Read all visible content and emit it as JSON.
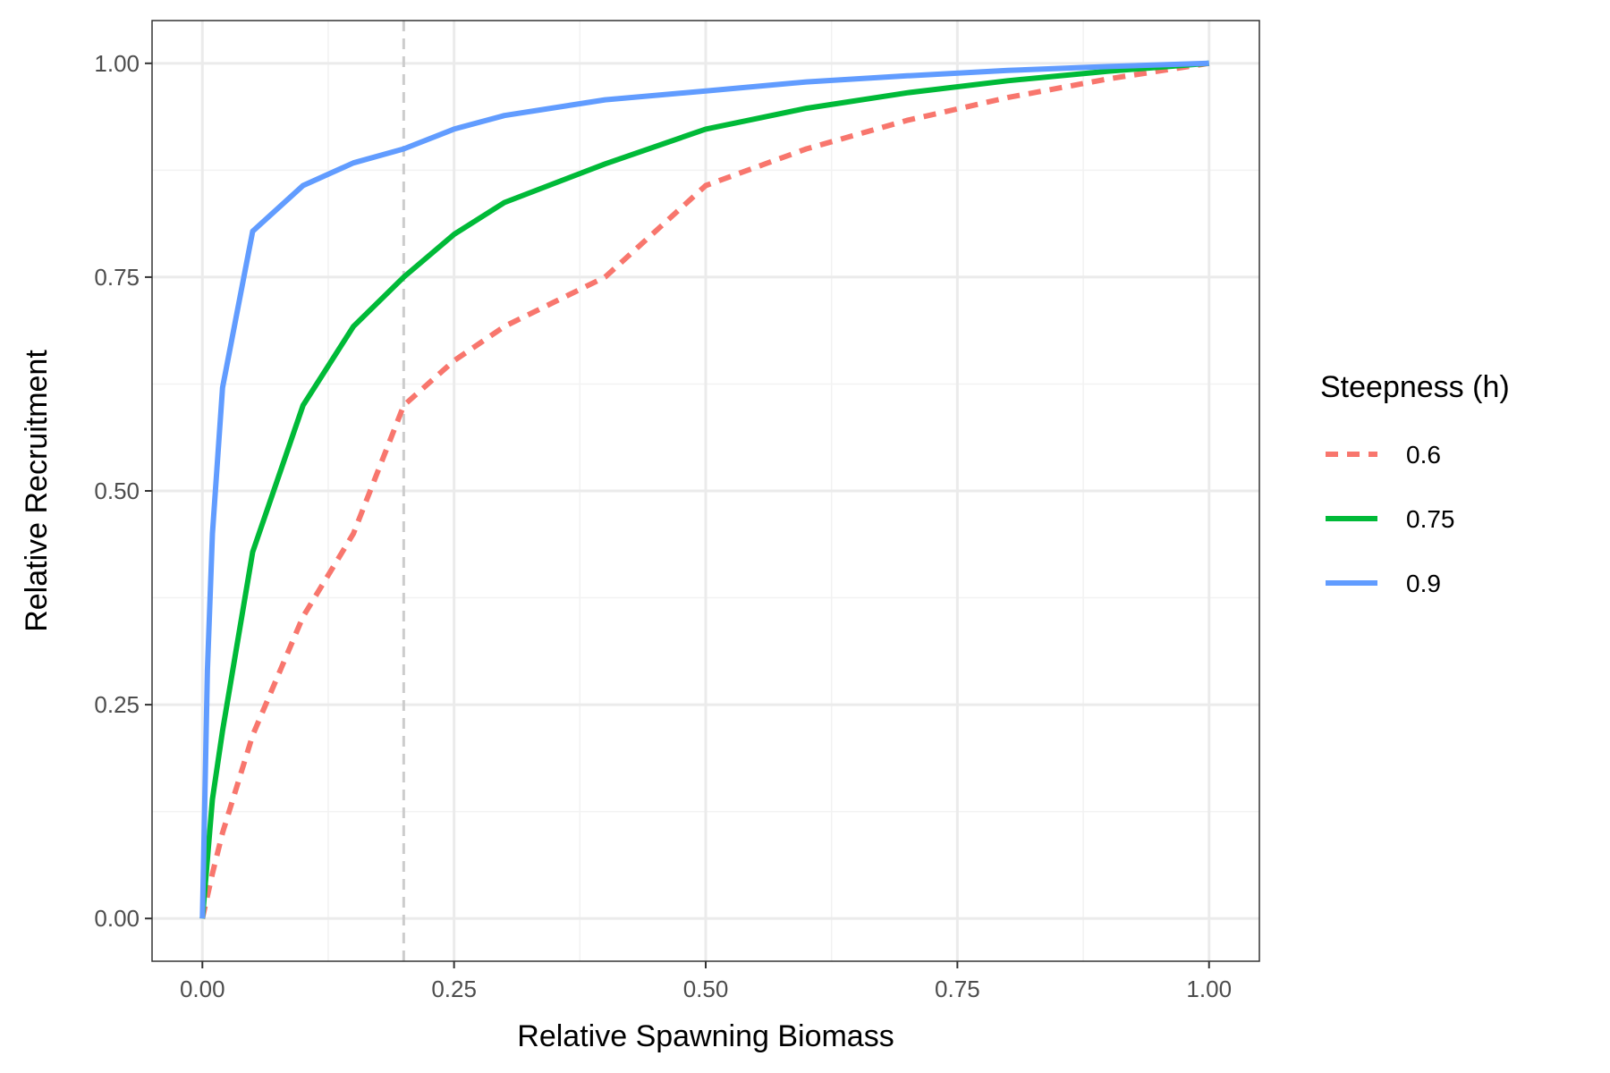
{
  "chart_data": {
    "type": "line",
    "xlabel": "Relative Spawning Biomass",
    "ylabel": "Relative Recruitment",
    "xlim": [
      -0.05,
      1.05
    ],
    "ylim": [
      -0.05,
      1.05
    ],
    "x_ticks": [
      "0.00",
      "0.25",
      "0.50",
      "0.75",
      "1.00"
    ],
    "x_tick_values": [
      0,
      0.25,
      0.5,
      0.75,
      1.0
    ],
    "y_ticks": [
      "0.00",
      "0.25",
      "0.50",
      "0.75",
      "1.00"
    ],
    "y_tick_values": [
      0,
      0.25,
      0.5,
      0.75,
      1.0
    ],
    "x_minor": [
      0.125,
      0.375,
      0.625,
      0.875
    ],
    "y_minor": [
      0.125,
      0.375,
      0.625,
      0.875
    ],
    "vline": {
      "x": 0.2,
      "style": "dashed",
      "color": "#cccccc"
    },
    "grid": true,
    "legend": {
      "title": "Steepness (h)",
      "position": "right"
    },
    "series": [
      {
        "name": "0.6",
        "color": "#f8766d",
        "dashed": true,
        "x": [
          0,
          0.01,
          0.02,
          0.05,
          0.1,
          0.15,
          0.2,
          0.25,
          0.3,
          0.4,
          0.5,
          0.6,
          0.7,
          0.8,
          0.9,
          1.0
        ],
        "y": [
          0,
          0.0526,
          0.1001,
          0.2143,
          0.3529,
          0.45,
          0.6,
          0.6522,
          0.6923,
          0.75,
          0.8571,
          0.9,
          0.9333,
          0.96,
          0.9818,
          1.0
        ]
      },
      {
        "name": "0.75",
        "color": "#00ba38",
        "dashed": false,
        "x": [
          0,
          0.01,
          0.02,
          0.05,
          0.1,
          0.15,
          0.2,
          0.25,
          0.3,
          0.4,
          0.5,
          0.6,
          0.7,
          0.8,
          0.9,
          1.0
        ],
        "y": [
          0,
          0.1395,
          0.2195,
          0.4286,
          0.6,
          0.6923,
          0.75,
          0.8,
          0.8372,
          0.8824,
          0.9231,
          0.9474,
          0.9655,
          0.9796,
          0.9908,
          1.0
        ]
      },
      {
        "name": "0.9",
        "color": "#619cff",
        "dashed": false,
        "x": [
          0,
          0.005,
          0.01,
          0.02,
          0.05,
          0.1,
          0.15,
          0.2,
          0.25,
          0.3,
          0.4,
          0.5,
          0.6,
          0.7,
          0.8,
          0.9,
          1.0
        ],
        "y": [
          0,
          0.2903,
          0.45,
          0.6207,
          0.8036,
          0.8571,
          0.8835,
          0.9,
          0.9231,
          0.939,
          0.9574,
          0.9677,
          0.9783,
          0.9854,
          0.9917,
          0.9963,
          1.0
        ]
      }
    ]
  }
}
